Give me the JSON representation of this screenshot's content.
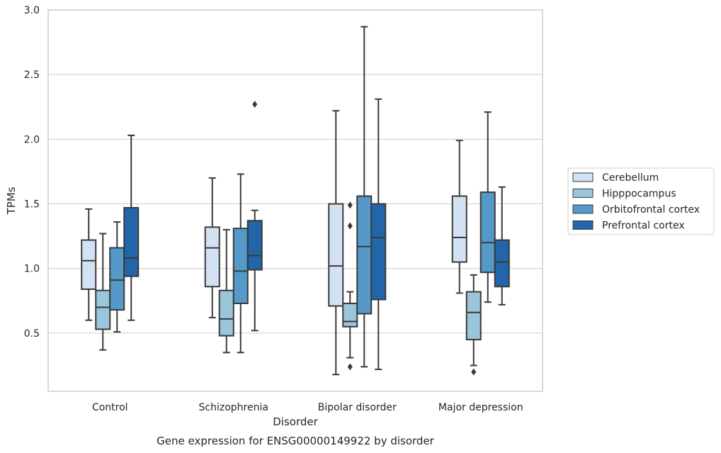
{
  "chart_data": {
    "type": "boxplot",
    "title": "",
    "caption": "Gene expression for ENSG00000149922 by disorder",
    "xlabel": "Disorder",
    "ylabel": "TPMs",
    "ylim": [
      0.05,
      3.0
    ],
    "yticks": [
      0.5,
      1.0,
      1.5,
      2.0,
      2.5,
      3.0
    ],
    "ytick_labels": [
      "0.5",
      "1.0",
      "1.5",
      "2.0",
      "2.5",
      "3.0"
    ],
    "grid": "horizontal",
    "legend_position": "right",
    "categories": [
      "Control",
      "Schizophrenia",
      "Bipolar disorder",
      "Major depression"
    ],
    "series": [
      {
        "name": "Cerebellum",
        "color": "#d3e2f2",
        "boxes": [
          {
            "whislo": 0.6,
            "q1": 0.84,
            "med": 1.06,
            "q3": 1.22,
            "whishi": 1.46,
            "fliers": []
          },
          {
            "whislo": 0.62,
            "q1": 0.86,
            "med": 1.16,
            "q3": 1.32,
            "whishi": 1.7,
            "fliers": []
          },
          {
            "whislo": 0.18,
            "q1": 0.71,
            "med": 1.02,
            "q3": 1.5,
            "whishi": 2.22,
            "fliers": []
          },
          {
            "whislo": 0.81,
            "q1": 1.05,
            "med": 1.24,
            "q3": 1.56,
            "whishi": 1.99,
            "fliers": []
          }
        ]
      },
      {
        "name": "Hipppocampus",
        "color": "#9ac5db",
        "boxes": [
          {
            "whislo": 0.37,
            "q1": 0.53,
            "med": 0.7,
            "q3": 0.83,
            "whishi": 1.27,
            "fliers": []
          },
          {
            "whislo": 0.35,
            "q1": 0.48,
            "med": 0.61,
            "q3": 0.83,
            "whishi": 1.3,
            "fliers": []
          },
          {
            "whislo": 0.31,
            "q1": 0.55,
            "med": 0.59,
            "q3": 0.73,
            "whishi": 0.82,
            "fliers": [
              0.24,
              1.33,
              1.49
            ]
          },
          {
            "whislo": 0.25,
            "q1": 0.45,
            "med": 0.66,
            "q3": 0.82,
            "whishi": 0.95,
            "fliers": [
              0.2
            ]
          }
        ]
      },
      {
        "name": "Orbitofrontal cortex",
        "color": "#5599c8",
        "boxes": [
          {
            "whislo": 0.51,
            "q1": 0.68,
            "med": 0.91,
            "q3": 1.16,
            "whishi": 1.36,
            "fliers": []
          },
          {
            "whislo": 0.35,
            "q1": 0.73,
            "med": 0.98,
            "q3": 1.31,
            "whishi": 1.73,
            "fliers": []
          },
          {
            "whislo": 0.24,
            "q1": 0.65,
            "med": 1.17,
            "q3": 1.56,
            "whishi": 2.87,
            "fliers": []
          },
          {
            "whislo": 0.74,
            "q1": 0.97,
            "med": 1.2,
            "q3": 1.59,
            "whishi": 2.21,
            "fliers": []
          }
        ]
      },
      {
        "name": "Prefrontal cortex",
        "color": "#2365a9",
        "boxes": [
          {
            "whislo": 0.6,
            "q1": 0.94,
            "med": 1.08,
            "q3": 1.47,
            "whishi": 2.03,
            "fliers": []
          },
          {
            "whislo": 0.52,
            "q1": 0.99,
            "med": 1.1,
            "q3": 1.37,
            "whishi": 1.45,
            "fliers": [
              2.27
            ]
          },
          {
            "whislo": 0.22,
            "q1": 0.76,
            "med": 1.24,
            "q3": 1.5,
            "whishi": 2.31,
            "fliers": []
          },
          {
            "whislo": 0.72,
            "q1": 0.86,
            "med": 1.05,
            "q3": 1.22,
            "whishi": 1.63,
            "fliers": []
          }
        ]
      }
    ]
  }
}
